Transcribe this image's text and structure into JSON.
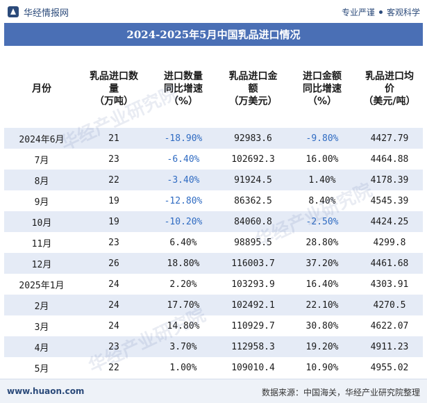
{
  "header": {
    "brand": "华经情报网",
    "tag1": "专业严谨",
    "tag2": "客观科学"
  },
  "title": "2024-2025年5月中国乳品进口情况",
  "table": {
    "columns": [
      "月份",
      "乳品进口数量（万吨）",
      "进口数量同比增速（%）",
      "乳品进口金额（万美元）",
      "进口金额同比增速（%）",
      "乳品进口均价（美元/吨）"
    ],
    "column_lines": [
      [
        "月份"
      ],
      [
        "乳品进口数",
        "量",
        "（万吨）"
      ],
      [
        "进口数量",
        "同比增速",
        "（%）"
      ],
      [
        "乳品进口金",
        "额",
        "（万美元）"
      ],
      [
        "进口金额",
        "同比增速",
        "（%）"
      ],
      [
        "乳品进口均",
        "价",
        "（美元/吨）"
      ]
    ],
    "rows": [
      [
        "2024年6月",
        "21",
        "-18.90%",
        "92983.6",
        "-9.80%",
        "4427.79"
      ],
      [
        "7月",
        "23",
        "-6.40%",
        "102692.3",
        "16.00%",
        "4464.88"
      ],
      [
        "8月",
        "22",
        "-3.40%",
        "91924.5",
        "1.40%",
        "4178.39"
      ],
      [
        "9月",
        "19",
        "-12.80%",
        "86362.5",
        "8.40%",
        "4545.39"
      ],
      [
        "10月",
        "19",
        "-10.20%",
        "84060.8",
        "-2.50%",
        "4424.25"
      ],
      [
        "11月",
        "23",
        "6.40%",
        "98895.5",
        "28.80%",
        "4299.8"
      ],
      [
        "12月",
        "26",
        "18.80%",
        "116003.7",
        "37.20%",
        "4461.68"
      ],
      [
        "2025年1月",
        "24",
        "2.20%",
        "103293.9",
        "16.40%",
        "4303.91"
      ],
      [
        "2月",
        "24",
        "17.70%",
        "102492.1",
        "22.10%",
        "4270.5"
      ],
      [
        "3月",
        "24",
        "14.80%",
        "110929.7",
        "30.80%",
        "4622.07"
      ],
      [
        "4月",
        "23",
        "3.70%",
        "112958.3",
        "19.20%",
        "4911.23"
      ],
      [
        "5月",
        "22",
        "1.00%",
        "109010.4",
        "10.90%",
        "4955.02"
      ]
    ]
  },
  "footer": {
    "website": "www.huaon.com",
    "source": "数据来源：中国海关，华经产业研究院整理"
  },
  "watermark": "华经产业研究院",
  "colors": {
    "title_bar": "#4a6fb5",
    "row_stripe": "#e5ebf6",
    "negative_text": "#2f6bc2"
  },
  "chart_data": {
    "type": "table",
    "title": "2024-2025年5月中国乳品进口情况",
    "columns": [
      "月份",
      "乳品进口数量（万吨）",
      "进口数量同比增速（%）",
      "乳品进口金额（万美元）",
      "进口金额同比增速（%）",
      "乳品进口均价（美元/吨）"
    ],
    "categories": [
      "2024年6月",
      "7月",
      "8月",
      "9月",
      "10月",
      "11月",
      "12月",
      "2025年1月",
      "2月",
      "3月",
      "4月",
      "5月"
    ],
    "series": [
      {
        "name": "乳品进口数量（万吨）",
        "values": [
          21,
          23,
          22,
          19,
          19,
          23,
          26,
          24,
          24,
          24,
          23,
          22
        ]
      },
      {
        "name": "进口数量同比增速（%）",
        "values": [
          -18.9,
          -6.4,
          -3.4,
          -12.8,
          -10.2,
          6.4,
          18.8,
          2.2,
          17.7,
          14.8,
          3.7,
          1.0
        ]
      },
      {
        "name": "乳品进口金额（万美元）",
        "values": [
          92983.6,
          102692.3,
          91924.5,
          86362.5,
          84060.8,
          98895.5,
          116003.7,
          103293.9,
          102492.1,
          110929.7,
          112958.3,
          109010.4
        ]
      },
      {
        "name": "进口金额同比增速（%）",
        "values": [
          -9.8,
          16.0,
          1.4,
          8.4,
          -2.5,
          28.8,
          37.2,
          16.4,
          22.1,
          30.8,
          19.2,
          10.9
        ]
      },
      {
        "name": "乳品进口均价（美元/吨）",
        "values": [
          4427.79,
          4464.88,
          4178.39,
          4545.39,
          4424.25,
          4299.8,
          4461.68,
          4303.91,
          4270.5,
          4622.07,
          4911.23,
          4955.02
        ]
      }
    ]
  }
}
